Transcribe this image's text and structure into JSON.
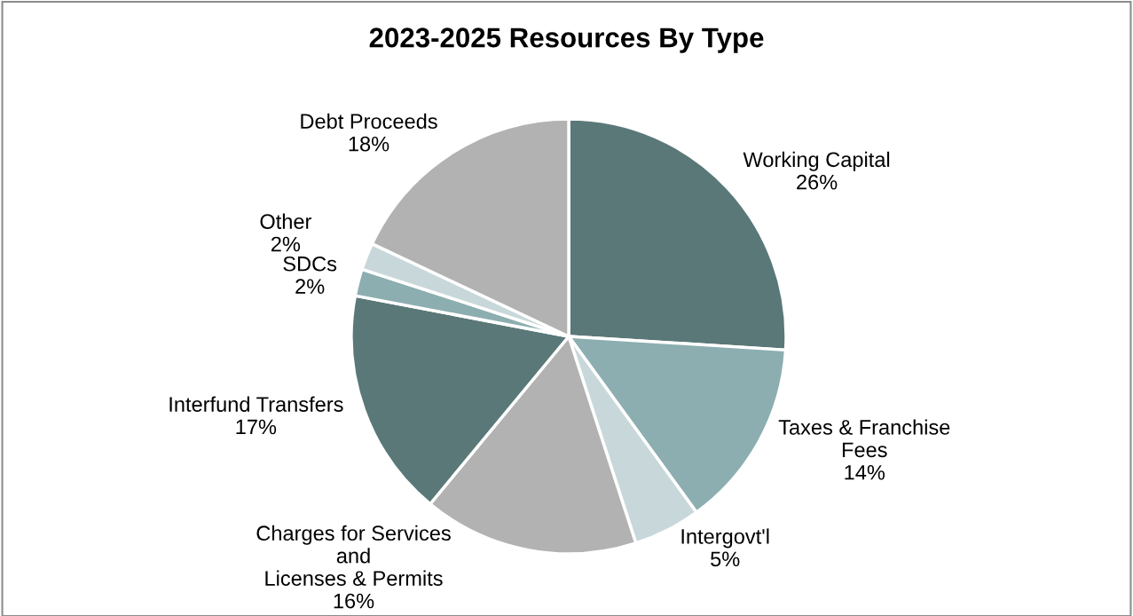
{
  "chart_data": {
    "type": "pie",
    "title": "2023-2025 Resources By Type",
    "categories": [
      "Working Capital",
      "Taxes & Franchise\nFees",
      "Intergovt'l",
      "Charges for Services\nand\nLicenses & Permits",
      "Interfund Transfers",
      "SDCs",
      "Other",
      "Debt Proceeds"
    ],
    "values": [
      26,
      14,
      5,
      16,
      17,
      2,
      2,
      18
    ],
    "value_labels": [
      "26%",
      "14%",
      "5%",
      "16%",
      "17%",
      "2%",
      "2%",
      "18%"
    ],
    "colors": [
      "#5a7878",
      "#8caeb0",
      "#c8d8da",
      "#b2b2b2",
      "#5a7878",
      "#8caeb0",
      "#c8d8da",
      "#b2b2b2"
    ],
    "legend": false
  }
}
